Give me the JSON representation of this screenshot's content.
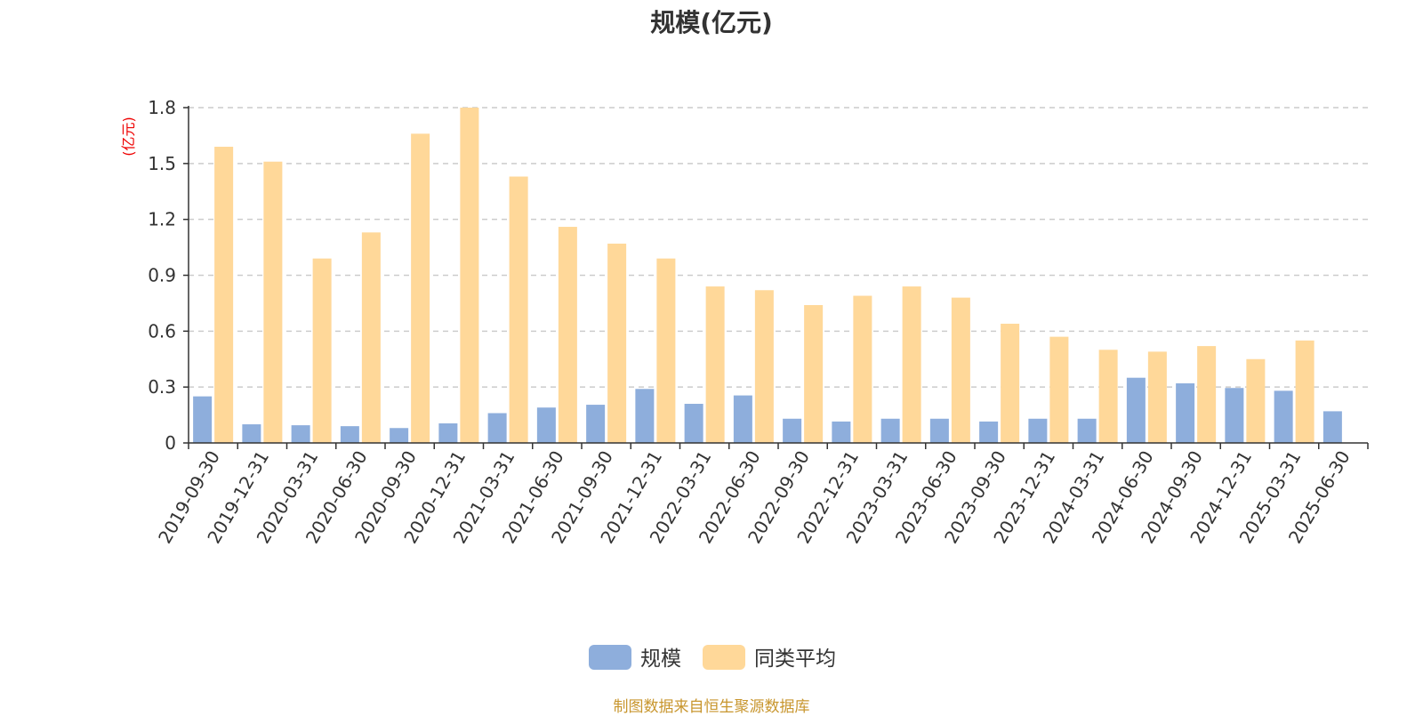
{
  "chart_data": {
    "type": "bar",
    "title": "规模(亿元)",
    "ylabel": "(亿元)",
    "xlabel": "",
    "ylim": [
      0,
      1.8
    ],
    "yticks": [
      "0",
      "0.3",
      "0.6",
      "0.9",
      "1.2",
      "1.5",
      "1.8"
    ],
    "grid": true,
    "legend_position": "bottom-center",
    "categories": [
      "2019-09-30",
      "2019-12-31",
      "2020-03-31",
      "2020-06-30",
      "2020-09-30",
      "2020-12-31",
      "2021-03-31",
      "2021-06-30",
      "2021-09-30",
      "2021-12-31",
      "2022-03-31",
      "2022-06-30",
      "2022-09-30",
      "2022-12-31",
      "2023-03-31",
      "2023-06-30",
      "2023-09-30",
      "2023-12-31",
      "2024-03-31",
      "2024-06-30",
      "2024-09-30",
      "2024-12-31",
      "2025-03-31",
      "2025-06-30"
    ],
    "series": [
      {
        "name": "规模",
        "color": "#8eaedc",
        "values": [
          0.25,
          0.1,
          0.095,
          0.09,
          0.08,
          0.105,
          0.16,
          0.19,
          0.205,
          0.29,
          0.21,
          0.255,
          0.13,
          0.115,
          0.13,
          0.13,
          0.115,
          0.13,
          0.13,
          0.35,
          0.32,
          0.295,
          0.28,
          0.17
        ]
      },
      {
        "name": "同类平均",
        "color": "#ffd899",
        "values": [
          1.59,
          1.51,
          0.99,
          1.13,
          1.66,
          1.8,
          1.43,
          1.16,
          1.07,
          0.99,
          0.84,
          0.82,
          0.74,
          0.79,
          0.84,
          0.78,
          0.64,
          0.57,
          0.5,
          0.49,
          0.52,
          0.45,
          0.55,
          null
        ]
      }
    ]
  },
  "footer": {
    "source": "制图数据来自恒生聚源数据库"
  }
}
